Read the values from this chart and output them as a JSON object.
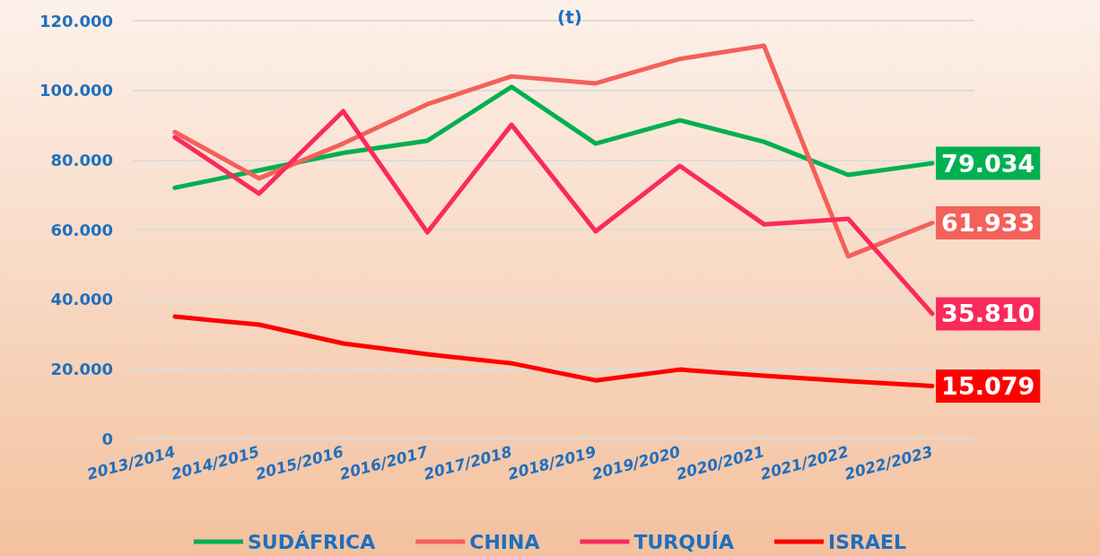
{
  "chart_data": {
    "type": "line",
    "title": "(t)",
    "categories": [
      "2013/2014",
      "2014/2015",
      "2015/2016",
      "2016/2017",
      "2017/2018",
      "2018/2019",
      "2019/2020",
      "2020/2021",
      "2021/2022",
      "2022/2023"
    ],
    "series": [
      {
        "name": "SUDÁFRICA",
        "color": "#00b050",
        "values": [
          72000,
          77000,
          82000,
          85500,
          101000,
          84700,
          91400,
          85200,
          75700,
          79034
        ],
        "value_labels": [
          null,
          null,
          null,
          null,
          null,
          null,
          null,
          null,
          null,
          "79.034"
        ]
      },
      {
        "name": "CHINA",
        "color": "#f4605a",
        "values": [
          88000,
          74700,
          84700,
          96000,
          104000,
          102000,
          109000,
          112800,
          52300,
          61933
        ],
        "value_labels": [
          null,
          null,
          null,
          null,
          null,
          null,
          null,
          null,
          null,
          "61.933"
        ]
      },
      {
        "name": "TURQUÍA",
        "color": "#fa2a5c",
        "values": [
          86500,
          70300,
          94000,
          59200,
          90100,
          59500,
          78300,
          61500,
          63100,
          35810
        ],
        "value_labels": [
          null,
          null,
          null,
          null,
          null,
          null,
          null,
          null,
          null,
          "35.810"
        ]
      },
      {
        "name": "ISRAEL",
        "color": "#ff0000",
        "values": [
          35000,
          32700,
          27300,
          24200,
          21600,
          16700,
          19800,
          18000,
          16500,
          15079
        ],
        "value_labels": [
          null,
          null,
          null,
          null,
          null,
          null,
          null,
          null,
          null,
          "15.079"
        ]
      }
    ],
    "ylim": [
      0,
      120000
    ],
    "yticks": [
      {
        "value": 0,
        "label": "0"
      },
      {
        "value": 20000,
        "label": "20.000"
      },
      {
        "value": 40000,
        "label": "40.000"
      },
      {
        "value": 60000,
        "label": "60.000"
      },
      {
        "value": 80000,
        "label": "80.000"
      },
      {
        "value": 100000,
        "label": "100.000"
      },
      {
        "value": 120000,
        "label": "120.000"
      }
    ],
    "grid": "y",
    "legend": "bottom",
    "marker": "none",
    "line_style": "solid"
  }
}
